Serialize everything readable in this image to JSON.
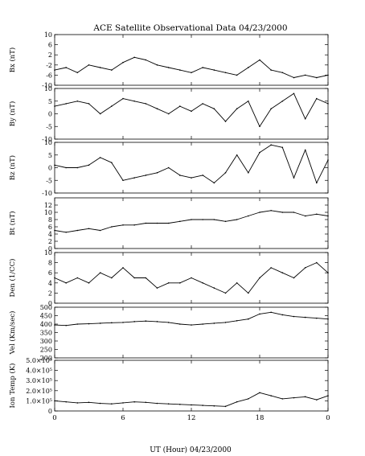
{
  "chart_data": {
    "type": "line",
    "title": "ACE Satellite Observational Data   04/23/2000",
    "xlabel": "UT (Hour)   04/23/2000",
    "x_ticks": [
      "0",
      "6",
      "12",
      "18",
      "0"
    ],
    "xlim": [
      0,
      24
    ],
    "grid": false,
    "panels": [
      {
        "name": "bx",
        "ylabel": "Bx (nT)",
        "ylim": [
          -10,
          10
        ],
        "yticks": [
          "10",
          "6",
          "2",
          "-2",
          "-6",
          "-10"
        ],
        "ytick_values": [
          10,
          6,
          2,
          -2,
          -6,
          -10
        ],
        "x": [
          0,
          1,
          2,
          3,
          4,
          5,
          6,
          7,
          8,
          9,
          10,
          11,
          12,
          13,
          14,
          15,
          16,
          17,
          18,
          19,
          20,
          21,
          22,
          23,
          24
        ],
        "values": [
          -4,
          -3,
          -5,
          -2,
          -3,
          -4,
          -1,
          1,
          0,
          -2,
          -3,
          -4,
          -5,
          -3,
          -4,
          -5,
          -6,
          -3,
          0,
          -4,
          -5,
          -7,
          -6,
          -7,
          -6
        ]
      },
      {
        "name": "by",
        "ylabel": "By (nT)",
        "ylim": [
          -10,
          10
        ],
        "yticks": [
          "10",
          "5",
          "0",
          "-5",
          "-10"
        ],
        "ytick_values": [
          10,
          5,
          0,
          -5,
          -10
        ],
        "x": [
          0,
          1,
          2,
          3,
          4,
          5,
          6,
          7,
          8,
          9,
          10,
          11,
          12,
          13,
          14,
          15,
          16,
          17,
          18,
          19,
          20,
          21,
          22,
          23,
          24
        ],
        "values": [
          3,
          4,
          5,
          4,
          0,
          3,
          6,
          5,
          4,
          2,
          0,
          3,
          1,
          4,
          2,
          -3,
          2,
          5,
          -5,
          2,
          5,
          8,
          -2,
          6,
          4
        ]
      },
      {
        "name": "bz",
        "ylabel": "Bz (nT)",
        "ylim": [
          -10,
          10
        ],
        "yticks": [
          "10",
          "5",
          "0",
          "-5",
          "-10"
        ],
        "ytick_values": [
          10,
          5,
          0,
          -5,
          -10
        ],
        "x": [
          0,
          1,
          2,
          3,
          4,
          5,
          6,
          7,
          8,
          9,
          10,
          11,
          12,
          13,
          14,
          15,
          16,
          17,
          18,
          19,
          20,
          21,
          22,
          23,
          24
        ],
        "values": [
          1,
          0,
          0,
          1,
          4,
          2,
          -5,
          -4,
          -3,
          -2,
          0,
          -3,
          -4,
          -3,
          -6,
          -2,
          5,
          -2,
          6,
          9,
          8,
          -4,
          7,
          -6,
          3
        ]
      },
      {
        "name": "bt",
        "ylabel": "Bt (nT)",
        "ylim": [
          0,
          14
        ],
        "yticks": [
          "12",
          "10",
          "8",
          "6",
          "4",
          "2",
          "0"
        ],
        "ytick_values": [
          12,
          10,
          8,
          6,
          4,
          2,
          0
        ],
        "x": [
          0,
          1,
          2,
          3,
          4,
          5,
          6,
          7,
          8,
          9,
          10,
          11,
          12,
          13,
          14,
          15,
          16,
          17,
          18,
          19,
          20,
          21,
          22,
          23,
          24
        ],
        "values": [
          5,
          4.5,
          5,
          5.5,
          5,
          6,
          6.5,
          6.5,
          7,
          7,
          7,
          7.5,
          8,
          8,
          8,
          7.5,
          8,
          9,
          10,
          10.5,
          10,
          10,
          9,
          9.5,
          9
        ]
      },
      {
        "name": "den",
        "ylabel": "Den (1/CC)",
        "ylim": [
          0,
          10
        ],
        "yticks": [
          "10",
          "8",
          "6",
          "4",
          "2",
          "0"
        ],
        "ytick_values": [
          10,
          8,
          6,
          4,
          2,
          0
        ],
        "x": [
          0,
          1,
          2,
          3,
          4,
          5,
          6,
          7,
          8,
          9,
          10,
          11,
          12,
          13,
          14,
          15,
          16,
          17,
          18,
          19,
          20,
          21,
          22,
          23,
          24
        ],
        "values": [
          5,
          4,
          5,
          4,
          6,
          5,
          7,
          5,
          5,
          3,
          4,
          4,
          5,
          4,
          3,
          2,
          4,
          2,
          5,
          7,
          6,
          5,
          7,
          8,
          6
        ]
      },
      {
        "name": "vel",
        "ylabel": "Vel (Km/sec)",
        "ylim": [
          200,
          500
        ],
        "yticks": [
          "500",
          "450",
          "400",
          "350",
          "300",
          "250",
          "200"
        ],
        "ytick_values": [
          500,
          450,
          400,
          350,
          300,
          250,
          200
        ],
        "x": [
          0,
          1,
          2,
          3,
          4,
          5,
          6,
          7,
          8,
          9,
          10,
          11,
          12,
          13,
          14,
          15,
          16,
          17,
          18,
          19,
          20,
          21,
          22,
          23,
          24
        ],
        "values": [
          395,
          392,
          400,
          402,
          405,
          408,
          410,
          415,
          418,
          415,
          410,
          400,
          395,
          400,
          405,
          410,
          420,
          430,
          460,
          470,
          455,
          445,
          440,
          435,
          430
        ]
      },
      {
        "name": "iontemp",
        "ylabel": "Ion Temp (K)",
        "ylim": [
          0,
          500000
        ],
        "yticks": [
          "5.0×10⁵",
          "4.0×10⁵",
          "3.0×10⁵",
          "2.0×10⁵",
          "1.0×10⁵",
          "0"
        ],
        "ytick_values": [
          500000,
          400000,
          300000,
          200000,
          100000,
          0
        ],
        "x": [
          0,
          1,
          2,
          3,
          4,
          5,
          6,
          7,
          8,
          9,
          10,
          11,
          12,
          13,
          14,
          15,
          16,
          17,
          18,
          19,
          20,
          21,
          22,
          23,
          24
        ],
        "values": [
          100000,
          90000,
          80000,
          85000,
          75000,
          70000,
          80000,
          90000,
          85000,
          75000,
          70000,
          65000,
          60000,
          55000,
          50000,
          45000,
          90000,
          120000,
          180000,
          150000,
          120000,
          130000,
          140000,
          110000,
          150000
        ]
      }
    ]
  }
}
